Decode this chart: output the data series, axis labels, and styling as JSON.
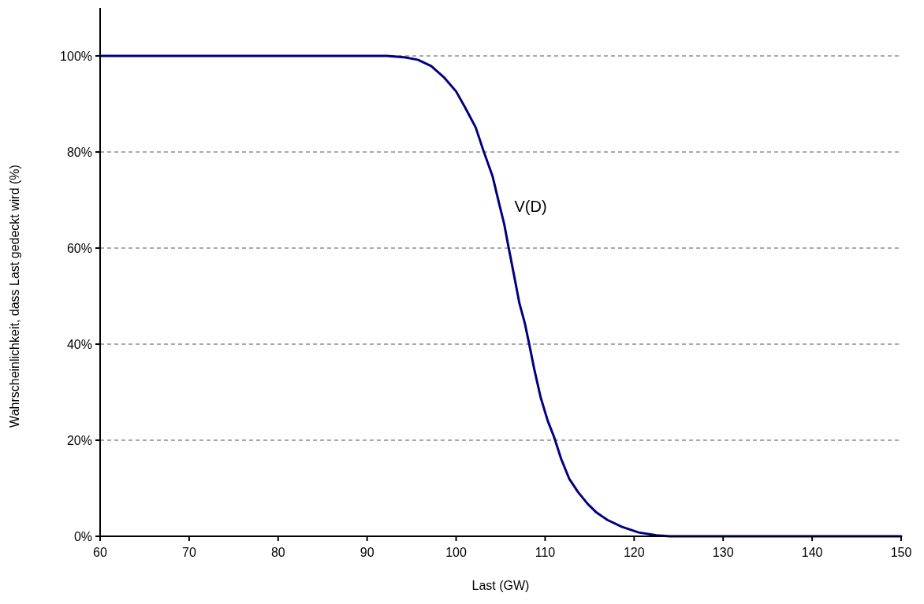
{
  "chart_data": {
    "type": "line",
    "xlabel": "Last (GW)",
    "ylabel": "Wahrscheinlichkeit, dass Last gedeckt wird (%)",
    "x": [
      60,
      92.2,
      94.2,
      95.7,
      97.2,
      98.6,
      100,
      101,
      102.2,
      103.1,
      104.1,
      104.8,
      105.4,
      105.9,
      106.5,
      107.1,
      107.7,
      108.2,
      108.8,
      109.5,
      110.3,
      111,
      111.8,
      112.7,
      113.7,
      114.8,
      115.8,
      117,
      118.6,
      120.5,
      122.5,
      124,
      150
    ],
    "series": [
      {
        "color": "#000080",
        "values": [
          100,
          100,
          99.7,
          99.2,
          97.9,
          95.6,
          92.6,
          89.3,
          85.1,
          80.1,
          74.9,
          69.5,
          65,
          60.1,
          54.4,
          48.6,
          44.5,
          40.1,
          34.6,
          28.9,
          24,
          20.7,
          16.1,
          12,
          9.2,
          6.7,
          4.9,
          3.4,
          2,
          0.8,
          0.2,
          0,
          0
        ]
      }
    ],
    "xlim": [
      60,
      150
    ],
    "xticks": [
      60,
      70,
      80,
      90,
      100,
      110,
      120,
      130,
      140,
      150
    ],
    "ylim": [
      0,
      110
    ],
    "yticks": [
      {
        "value": 0,
        "label": "0%"
      },
      {
        "value": 20,
        "label": "20%"
      },
      {
        "value": 40,
        "label": "40%"
      },
      {
        "value": 60,
        "label": "60%"
      },
      {
        "value": 80,
        "label": "80%"
      },
      {
        "value": 100,
        "label": "100%"
      }
    ],
    "grid": "y",
    "marker": "none",
    "line_style": "solid",
    "annotations": [
      "V(D)"
    ]
  }
}
